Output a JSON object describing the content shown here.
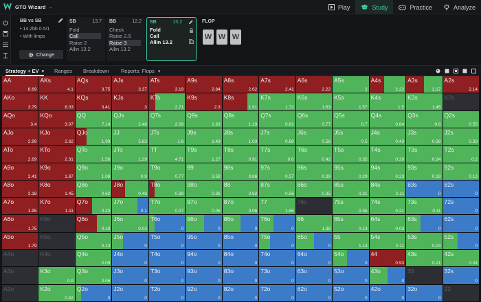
{
  "app": {
    "title": "GTO Wizard"
  },
  "nav": {
    "tabs": [
      {
        "label": "Play"
      },
      {
        "label": "Study"
      },
      {
        "label": "Practice"
      },
      {
        "label": "Analyze"
      }
    ]
  },
  "config": {
    "title": "BB vs SB",
    "line1": "• 14.2bb 0.5/1",
    "line2": "• With limps",
    "change_label": "Change"
  },
  "actions": [
    {
      "pos": "SB",
      "stack": "13.7",
      "items": [
        "Fold",
        "Call",
        "Raise 2",
        "Allin 13.2"
      ]
    },
    {
      "pos": "BB",
      "stack": "12.2",
      "items": [
        "Check",
        "Raise 2.5",
        "Raise 3",
        "Allin 13.2"
      ]
    },
    {
      "pos": "SB",
      "stack": "13.2",
      "items": [
        "Fold",
        "Call",
        "Allin 13.2"
      ]
    }
  ],
  "flop": {
    "label": "FLOP",
    "cards": [
      "W",
      "W",
      "W"
    ]
  },
  "subbar": {
    "tabs": [
      "Strategy + EV",
      "Ranges",
      "Breakdown",
      "Reports: Flops"
    ]
  },
  "colors": {
    "raise": "#8f1f21",
    "call": "#4fb45a",
    "fold": "#3b7bc8",
    "empty": "#2c2e33",
    "accent": "#3ec9a7"
  },
  "grid": [
    [
      {
        "h": "AA",
        "ev": "8.69",
        "r": 1
      },
      {
        "h": "AKs",
        "ev": "4.1",
        "r": 1
      },
      {
        "h": "AQs",
        "ev": "3.75",
        "r": 1
      },
      {
        "h": "AJs",
        "ev": "3.37",
        "r": 1
      },
      {
        "h": "ATs",
        "ev": "3.19",
        "r": 1
      },
      {
        "h": "A9s",
        "ev": "2.84",
        "r": 1
      },
      {
        "h": "A8s",
        "ev": "2.62",
        "r": 1
      },
      {
        "h": "A7s",
        "ev": "2.41",
        "r": 1
      },
      {
        "h": "A6s",
        "ev": "2.22",
        "r": 1
      },
      {
        "h": "A5s",
        "ev": "2",
        "r": 0,
        "c": 1
      },
      {
        "h": "A4s",
        "ev": "2.22",
        "r": 0.4,
        "c": 0.6
      },
      {
        "h": "A3s",
        "ev": "2.17",
        "r": 0.5,
        "c": 0.5
      },
      {
        "h": "A2s",
        "ev": "2.14",
        "r": 1
      }
    ],
    [
      {
        "h": "AKo",
        "ev": "3.79",
        "r": 1
      },
      {
        "h": "KK",
        "ev": "8.03",
        "r": 1
      },
      {
        "h": "KQs",
        "ev": "3.41",
        "r": 1
      },
      {
        "h": "KJs",
        "ev": "3",
        "r": 1
      },
      {
        "h": "KTs",
        "ev": "2.71",
        "r": 0.18,
        "c": 0.82
      },
      {
        "h": "K9s",
        "ev": "2.3",
        "r": 1
      },
      {
        "h": "K8s",
        "ev": "1.91",
        "r": 0.7,
        "c": 0.3
      },
      {
        "h": "K7s",
        "ev": "1.72",
        "r": 0,
        "c": 1
      },
      {
        "h": "K6s",
        "ev": "1.63",
        "r": 0,
        "c": 1
      },
      {
        "h": "K5s",
        "ev": "1.57",
        "r": 0,
        "c": 1
      },
      {
        "h": "K4s",
        "ev": "1.5",
        "r": 0,
        "c": 1
      },
      {
        "h": "K3s",
        "ev": "1.45",
        "r": 0,
        "c": 1
      },
      {
        "h": "K2s",
        "ev": "",
        "e": 1
      }
    ],
    [
      {
        "h": "AQo",
        "ev": "3.4",
        "r": 1
      },
      {
        "h": "KQo",
        "ev": "3.07",
        "r": 1
      },
      {
        "h": "QQ",
        "ev": "7.14",
        "r": 0,
        "c": 1
      },
      {
        "h": "QJs",
        "ev": "2.48",
        "r": 0,
        "c": 1
      },
      {
        "h": "QTs",
        "ev": "2.09",
        "r": 0,
        "c": 1
      },
      {
        "h": "Q9s",
        "ev": "1.63",
        "r": 0,
        "c": 1
      },
      {
        "h": "Q8s",
        "ev": "1.19",
        "r": 0,
        "c": 1
      },
      {
        "h": "Q7s",
        "ev": "0.81",
        "r": 0,
        "c": 1
      },
      {
        "h": "Q6s",
        "ev": "0.77",
        "r": 0,
        "c": 1
      },
      {
        "h": "Q5s",
        "ev": "0.7",
        "r": 0,
        "c": 1
      },
      {
        "h": "Q4s",
        "ev": "0.64",
        "r": 0,
        "c": 1
      },
      {
        "h": "Q3s",
        "ev": "0.6",
        "r": 0,
        "c": 1
      },
      {
        "h": "Q2s",
        "ev": "0.55",
        "r": 0,
        "c": 1
      }
    ],
    [
      {
        "h": "AJo",
        "ev": "2.99",
        "r": 1
      },
      {
        "h": "KJo",
        "ev": "2.62",
        "r": 1
      },
      {
        "h": "QJo",
        "ev": "1.99",
        "r": 0.3,
        "c": 0.7
      },
      {
        "h": "JJ",
        "ev": "5.83",
        "r": 0,
        "c": 1
      },
      {
        "h": "JTs",
        "ev": "1.8",
        "r": 0,
        "c": 1
      },
      {
        "h": "J9s",
        "ev": "1.43",
        "r": 0,
        "c": 1
      },
      {
        "h": "J8s",
        "ev": "1.03",
        "r": 0,
        "c": 1
      },
      {
        "h": "J7s",
        "ev": "0.68",
        "r": 0,
        "c": 1
      },
      {
        "h": "J6s",
        "ev": "0.56",
        "r": 0,
        "c": 1
      },
      {
        "h": "J5s",
        "ev": "0.5",
        "r": 0,
        "c": 1
      },
      {
        "h": "J4s",
        "ev": "0.43",
        "r": 0,
        "c": 1
      },
      {
        "h": "J3s",
        "ev": "0.38",
        "r": 0,
        "c": 1
      },
      {
        "h": "J2s",
        "ev": "0.33",
        "r": 0,
        "c": 1
      }
    ],
    [
      {
        "h": "ATo",
        "ev": "2.69",
        "r": 1
      },
      {
        "h": "KTo",
        "ev": "2.31",
        "r": 1
      },
      {
        "h": "QTo",
        "ev": "1.58",
        "r": 0,
        "c": 1
      },
      {
        "h": "JTo",
        "ev": "1.29",
        "r": 0,
        "c": 1
      },
      {
        "h": "TT",
        "ev": "4.71",
        "r": 0,
        "c": 1
      },
      {
        "h": "T9s",
        "ev": "1.27",
        "r": 0,
        "c": 1
      },
      {
        "h": "T8s",
        "ev": "0.91",
        "r": 0,
        "c": 1
      },
      {
        "h": "T7s",
        "ev": "0.6",
        "r": 0,
        "c": 1
      },
      {
        "h": "T6s",
        "ev": "0.42",
        "r": 0,
        "c": 1
      },
      {
        "h": "T5s",
        "ev": "0.35",
        "r": 0,
        "c": 1
      },
      {
        "h": "T4s",
        "ev": "0.29",
        "r": 0,
        "c": 1
      },
      {
        "h": "T3s",
        "ev": "0.24",
        "r": 0,
        "c": 1
      },
      {
        "h": "T2s",
        "ev": "0.2",
        "r": 0,
        "c": 1
      }
    ],
    [
      {
        "h": "A9o",
        "ev": "2.41",
        "r": 1
      },
      {
        "h": "K9o",
        "ev": "1.87",
        "r": 1
      },
      {
        "h": "Q9o",
        "ev": "1.08",
        "r": 0,
        "c": 1
      },
      {
        "h": "J9o",
        "ev": "0.9",
        "r": 0,
        "c": 1
      },
      {
        "h": "T9o",
        "ev": "0.77",
        "r": 0,
        "c": 1
      },
      {
        "h": "99",
        "ev": "3.59",
        "r": 0,
        "c": 1
      },
      {
        "h": "98s",
        "ev": "0.86",
        "r": 0,
        "c": 1
      },
      {
        "h": "97s",
        "ev": "0.57",
        "r": 0,
        "c": 1
      },
      {
        "h": "96s",
        "ev": "0.39",
        "r": 0,
        "c": 1
      },
      {
        "h": "95s",
        "ev": "0.29",
        "r": 0,
        "c": 1
      },
      {
        "h": "94s",
        "ev": "0.23",
        "r": 0,
        "c": 1
      },
      {
        "h": "93s",
        "ev": "0.18",
        "r": 0,
        "c": 1
      },
      {
        "h": "92s",
        "ev": "0.13",
        "r": 0,
        "c": 1
      }
    ],
    [
      {
        "h": "A8o",
        "ev": "2.18",
        "r": 1
      },
      {
        "h": "K8o",
        "ev": "1.45",
        "r": 1
      },
      {
        "h": "Q8o",
        "ev": "0.62",
        "r": 0,
        "c": 1
      },
      {
        "h": "J8o",
        "ev": "0.48",
        "r": 0.35,
        "c": 0.65
      },
      {
        "h": "T8o",
        "ev": "0.39",
        "r": 0.15,
        "c": 0.85
      },
      {
        "h": "98o",
        "ev": "0.36",
        "r": 0,
        "c": 1
      },
      {
        "h": "88",
        "ev": "2.62",
        "r": 0,
        "c": 1
      },
      {
        "h": "87s",
        "ev": "0.56",
        "r": 0,
        "c": 1
      },
      {
        "h": "86s",
        "ev": "0.35",
        "r": 0,
        "c": 1
      },
      {
        "h": "85s",
        "ev": "0.21",
        "r": 0,
        "c": 1
      },
      {
        "h": "84s",
        "ev": "0.11",
        "r": 0,
        "c": 1
      },
      {
        "h": "83s",
        "ev": "0",
        "r": 0,
        "c": 0,
        "f": 1
      },
      {
        "h": "82s",
        "ev": "0",
        "r": 0,
        "c": 0,
        "f": 1
      }
    ],
    [
      {
        "h": "A7o",
        "ev": "1.95",
        "r": 1
      },
      {
        "h": "K7o",
        "ev": "1.11",
        "r": 1
      },
      {
        "h": "Q7o",
        "ev": "0.23",
        "r": 0.45,
        "c": 0.55
      },
      {
        "h": "J7o",
        "ev": "0.1",
        "r": 0,
        "c": 0.7,
        "f": 0.3
      },
      {
        "h": "T7o",
        "ev": "0.07",
        "r": 0,
        "c": 1
      },
      {
        "h": "97o",
        "ev": "0.06",
        "r": 0,
        "c": 1
      },
      {
        "h": "87o",
        "ev": "0.06",
        "r": 0,
        "c": 1
      },
      {
        "h": "77",
        "ev": "1.66",
        "r": 0,
        "c": 1
      },
      {
        "h": "76s",
        "ev": "",
        "e": 1
      },
      {
        "h": "75s",
        "ev": "0.35",
        "r": 0,
        "c": 1
      },
      {
        "h": "74s",
        "ev": "0.21",
        "r": 0,
        "c": 1
      },
      {
        "h": "73s",
        "ev": "0.11",
        "r": 0,
        "c": 1
      },
      {
        "h": "72s",
        "ev": "0",
        "r": 0,
        "c": 0,
        "f": 1
      }
    ],
    [
      {
        "h": "A6o",
        "ev": "1.75",
        "r": 1
      },
      {
        "h": "K6o",
        "ev": "",
        "e": 1
      },
      {
        "h": "Q6o",
        "ev": "0.19",
        "r": 0.6,
        "c": 0.4
      },
      {
        "h": "J6o",
        "ev": "0.03",
        "r": 0,
        "c": 1
      },
      {
        "h": "T6o",
        "ev": "0",
        "r": 0,
        "c": 0.15,
        "f": 0.85
      },
      {
        "h": "96o",
        "ev": "0",
        "r": 0,
        "c": 0.5,
        "f": 0.5
      },
      {
        "h": "86o",
        "ev": "0",
        "r": 0,
        "c": 0.5,
        "f": 0.5
      },
      {
        "h": "76o",
        "ev": "0",
        "r": 0,
        "c": 0.4,
        "f": 0.6
      },
      {
        "h": "66",
        "ev": "1.38",
        "r": 0,
        "c": 1
      },
      {
        "h": "65s",
        "ev": "0.13",
        "r": 0,
        "c": 1
      },
      {
        "h": "64s",
        "ev": "0.03",
        "r": 0,
        "c": 1
      },
      {
        "h": "63s",
        "ev": "0",
        "r": 0,
        "c": 0.4,
        "f": 0.6
      },
      {
        "h": "62s",
        "ev": "0",
        "r": 0,
        "c": 0,
        "f": 1
      }
    ],
    [
      {
        "h": "A5o",
        "ev": "1.79",
        "r": 1
      },
      {
        "h": "K5o",
        "ev": "",
        "e": 1
      },
      {
        "h": "Q5o",
        "ev": "0.13",
        "r": 0,
        "c": 1
      },
      {
        "h": "J5o",
        "ev": "0",
        "r": 0,
        "c": 0.3,
        "f": 0.7
      },
      {
        "h": "T5o",
        "ev": "0",
        "r": 0,
        "c": 0,
        "f": 1
      },
      {
        "h": "95o",
        "ev": "0",
        "r": 0,
        "c": 0,
        "f": 1
      },
      {
        "h": "85o",
        "ev": "0",
        "r": 0,
        "c": 0,
        "f": 1
      },
      {
        "h": "75o",
        "ev": "0",
        "r": 0,
        "c": 0.3,
        "f": 0.7
      },
      {
        "h": "65o",
        "ev": "0",
        "r": 0,
        "c": 0.5,
        "f": 0.5
      },
      {
        "h": "55",
        "ev": "1.13",
        "r": 0,
        "c": 1
      },
      {
        "h": "54s",
        "ev": "0.11",
        "r": 0,
        "c": 1
      },
      {
        "h": "53s",
        "ev": "0.04",
        "r": 0,
        "c": 1
      },
      {
        "h": "52s",
        "ev": "0",
        "r": 0,
        "c": 0.4,
        "f": 0.6
      }
    ],
    [
      {
        "h": "A4o",
        "ev": "",
        "e": 1
      },
      {
        "h": "K4o",
        "ev": "",
        "e": 1
      },
      {
        "h": "Q4o",
        "ev": "0.09",
        "r": 0,
        "c": 1
      },
      {
        "h": "J4o",
        "ev": "0",
        "r": 0,
        "c": 0,
        "f": 1
      },
      {
        "h": "T4o",
        "ev": "0",
        "r": 0,
        "c": 0,
        "f": 1
      },
      {
        "h": "94o",
        "ev": "0",
        "r": 0,
        "c": 0,
        "f": 1
      },
      {
        "h": "84o",
        "ev": "0",
        "r": 0,
        "c": 0,
        "f": 1
      },
      {
        "h": "74o",
        "ev": "0",
        "r": 0,
        "c": 0,
        "f": 1
      },
      {
        "h": "64o",
        "ev": "0",
        "r": 0,
        "c": 0,
        "f": 1
      },
      {
        "h": "54o",
        "ev": "0",
        "r": 0,
        "c": 0.4,
        "f": 0.6
      },
      {
        "h": "44",
        "ev": "0.93",
        "r": 1
      },
      {
        "h": "43s",
        "ev": "0.21",
        "r": 0,
        "c": 1
      },
      {
        "h": "42s",
        "ev": "0.04",
        "r": 0,
        "c": 1
      }
    ],
    [
      {
        "h": "A3o",
        "ev": "",
        "e": 1
      },
      {
        "h": "K3o",
        "ev": "0.9",
        "r": 0,
        "c": 1
      },
      {
        "h": "Q3o",
        "ev": "0.06",
        "r": 0,
        "c": 1
      },
      {
        "h": "J3o",
        "ev": "0",
        "r": 0,
        "c": 0,
        "f": 1
      },
      {
        "h": "T3o",
        "ev": "0",
        "r": 0,
        "c": 0,
        "f": 1
      },
      {
        "h": "93o",
        "ev": "0",
        "r": 0,
        "c": 0,
        "f": 1
      },
      {
        "h": "83o",
        "ev": "0",
        "r": 0,
        "c": 0,
        "f": 1
      },
      {
        "h": "73o",
        "ev": "0",
        "r": 0,
        "c": 0,
        "f": 1
      },
      {
        "h": "63o",
        "ev": "0",
        "r": 0,
        "c": 0,
        "f": 1
      },
      {
        "h": "53o",
        "ev": "0",
        "r": 0,
        "c": 0,
        "f": 1
      },
      {
        "h": "43o",
        "ev": "0",
        "r": 0,
        "c": 0.5,
        "f": 0.5
      },
      {
        "h": "33",
        "ev": "",
        "e": 1
      },
      {
        "h": "32s",
        "ev": "0",
        "r": 0,
        "c": 0,
        "f": 1
      }
    ],
    [
      {
        "h": "A2o",
        "ev": "",
        "e": 1
      },
      {
        "h": "K2o",
        "ev": "0.82",
        "r": 0,
        "c": 1
      },
      {
        "h": "Q2o",
        "ev": "0",
        "r": 0,
        "c": 0.15,
        "f": 0.85
      },
      {
        "h": "J2o",
        "ev": "0",
        "r": 0,
        "c": 0,
        "f": 1
      },
      {
        "h": "T2o",
        "ev": "0",
        "r": 0,
        "c": 0,
        "f": 1
      },
      {
        "h": "92o",
        "ev": "0",
        "r": 0,
        "c": 0,
        "f": 1
      },
      {
        "h": "82o",
        "ev": "0",
        "r": 0,
        "c": 0,
        "f": 1
      },
      {
        "h": "72o",
        "ev": "0",
        "r": 0,
        "c": 0,
        "f": 1
      },
      {
        "h": "62o",
        "ev": "0",
        "r": 0,
        "c": 0,
        "f": 1
      },
      {
        "h": "52o",
        "ev": "0",
        "r": 0,
        "c": 0,
        "f": 1
      },
      {
        "h": "42o",
        "ev": "0",
        "r": 0,
        "c": 0,
        "f": 1
      },
      {
        "h": "32o",
        "ev": "0",
        "r": 0,
        "c": 0,
        "f": 1
      },
      {
        "h": "22",
        "ev": "",
        "e": 1
      }
    ]
  ]
}
